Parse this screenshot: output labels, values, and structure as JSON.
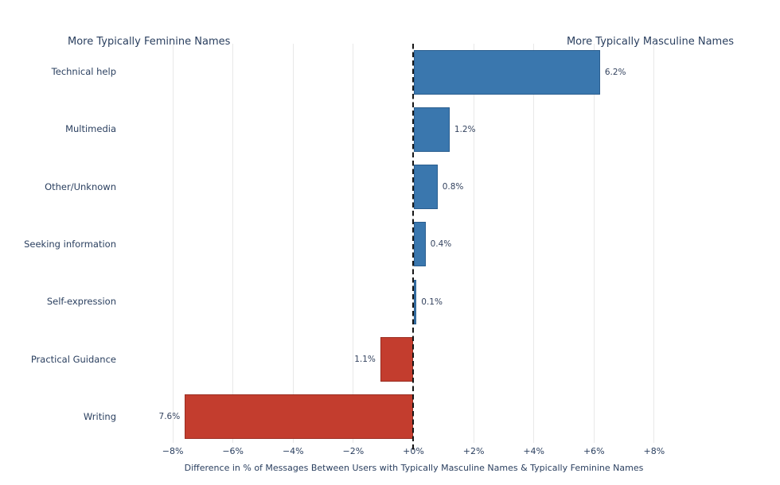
{
  "chart_data": {
    "type": "bar",
    "orientation": "horizontal",
    "categories": [
      "Technical help",
      "Multimedia",
      "Other/Unknown",
      "Seeking information",
      "Self-expression",
      "Practical Guidance",
      "Writing"
    ],
    "values": [
      6.2,
      1.2,
      0.8,
      0.4,
      0.1,
      -1.1,
      -7.6
    ],
    "value_labels": [
      "6.2%",
      "1.2%",
      "0.8%",
      "0.4%",
      "0.1%",
      "1.1%",
      "7.6%"
    ],
    "xlabel": "Difference in % of Messages Between Users with Typically Masculine Names & Typically Feminine Names",
    "ylabel": "",
    "title": "",
    "x_ticks": [
      -8,
      -6,
      -4,
      -2,
      0,
      2,
      4,
      6,
      8
    ],
    "x_tick_labels": [
      "−8%",
      "−6%",
      "−4%",
      "−2%",
      "+0%",
      "+2%",
      "+4%",
      "+6%",
      "+8%"
    ],
    "xlim": [
      -8.1,
      8.1
    ],
    "grid": "vertical-only",
    "legend": "none",
    "zero_line_style": "dashed-black",
    "annotations": [
      {
        "text": "More Typically Feminine Names",
        "position": "top-left"
      },
      {
        "text": "More Typically Masculine Names",
        "position": "top-right"
      }
    ],
    "colors": {
      "positive_fill": "#3a77ae",
      "positive_border": "#2a5e8f",
      "negative_fill": "#c33d2e",
      "negative_border": "#9a2c20",
      "gridline": "#e8e8e8",
      "zero_line": "#161616",
      "text": "#2a3f5f",
      "background": "#ffffff"
    }
  }
}
